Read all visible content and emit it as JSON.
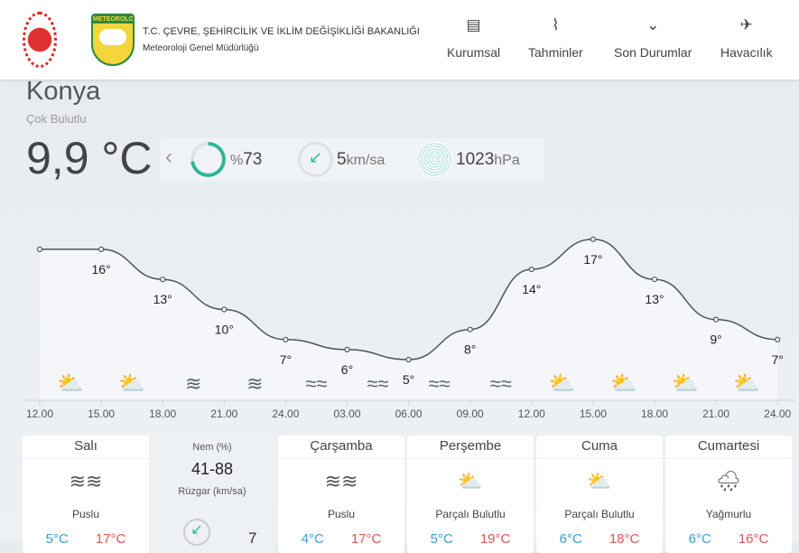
{
  "header": {
    "org_title": "T.C. ÇEVRE, ŞEHİRCİLİK VE İKLİM DEĞİŞİKLİĞİ BAKANLIĞI",
    "org_subtitle": "Meteoroloji Genel Müdürlüğü",
    "logo_text": "METEOROLOJI",
    "nav": [
      {
        "label": "Kurumsal",
        "icon": "document-icon"
      },
      {
        "label": "Tahminler",
        "icon": "chart-icon"
      },
      {
        "label": "Son Durumlar",
        "icon": "chevron-circle-icon"
      },
      {
        "label": "Havacılık",
        "icon": "plane-icon"
      }
    ]
  },
  "current": {
    "city": "Konya",
    "condition": "Çok Bulutlu",
    "temperature": "9,9 °C",
    "humidity_prefix": "%",
    "humidity": "73",
    "humidity_percent": 73,
    "wind": "5",
    "wind_unit": "km/sa",
    "pressure": "1023",
    "pressure_unit": "hPa",
    "accent": "#2bb59a"
  },
  "chart_data": {
    "type": "line",
    "x": [
      "12.00",
      "15.00",
      "18.00",
      "21.00",
      "24.00",
      "03.00",
      "06.00",
      "09.00",
      "12.00",
      "15.00",
      "18.00",
      "21.00",
      "24.00"
    ],
    "values": [
      16,
      16,
      13,
      10,
      7,
      6,
      5,
      8,
      14,
      17,
      13,
      9,
      7
    ],
    "labels": [
      "",
      "16°",
      "13°",
      "10°",
      "7°",
      "6°",
      "5°",
      "8°",
      "14°",
      "17°",
      "13°",
      "9°",
      "7°"
    ],
    "icons": [
      "partly-cloudy",
      "partly-cloudy",
      "fog",
      "fog",
      "mist",
      "mist",
      "mist",
      "mist",
      "partly-cloudy",
      "partly-cloudy",
      "partly-cloudy",
      "partly-cloudy"
    ]
  },
  "daily": [
    {
      "day": "Salı",
      "desc": "Puslu",
      "icon": "mist",
      "low": "5°C",
      "high": "17°C"
    },
    {
      "day": "Çarşamba",
      "desc": "Puslu",
      "icon": "mist",
      "low": "4°C",
      "high": "17°C"
    },
    {
      "day": "Perşembe",
      "desc": "Parçalı Bulutlu",
      "icon": "partly-cloudy",
      "low": "5°C",
      "high": "19°C"
    },
    {
      "day": "Cuma",
      "desc": "Parçalı Bulutlu",
      "icon": "partly-cloudy",
      "low": "6°C",
      "high": "18°C"
    },
    {
      "day": "Cumartesi",
      "desc": "Yağmurlu",
      "icon": "rain",
      "low": "6°C",
      "high": "16°C"
    }
  ],
  "detail": {
    "humidity_label": "Nem (%)",
    "humidity_range": "41-88",
    "wind_label": "Rüzgar (km/sa)",
    "wind_value": "7"
  }
}
